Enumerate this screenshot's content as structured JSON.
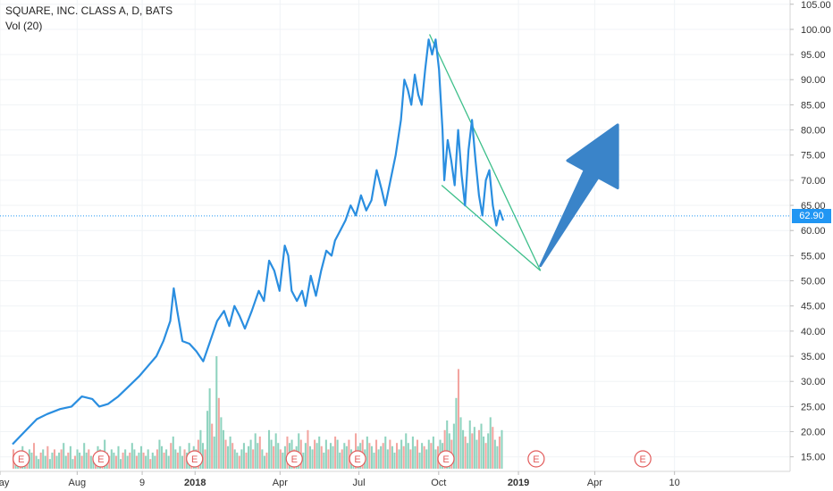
{
  "header": {
    "symbol": "SQUARE, INC. CLASS A, D, BATS",
    "indicator": "Vol (20)"
  },
  "last_price_label": "62.90",
  "colors": {
    "price_line": "#2a8ee0",
    "arrow": "#3a84c9",
    "wedge": "#3dbf8a",
    "vol_up": "#8fd3bf",
    "vol_down": "#f3a5a0",
    "earnings": "#e25b5b",
    "last_price": "#2196f3"
  },
  "chart_data": {
    "type": "line",
    "title": "SQUARE, INC. CLASS A, D, BATS",
    "y_axis_side": "right",
    "ylim": [
      13.5,
      106
    ],
    "y_ticks": [
      "15.00",
      "20.00",
      "25.00",
      "30.00",
      "35.00",
      "40.00",
      "45.00",
      "50.00",
      "55.00",
      "60.00",
      "65.00",
      "70.00",
      "75.00",
      "80.00",
      "85.00",
      "90.00",
      "95.00",
      "100.00",
      "105.00"
    ],
    "x_ticks": [
      {
        "label": "May",
        "t": 0
      },
      {
        "label": "Aug",
        "t": 89
      },
      {
        "label": "9",
        "t": 164
      },
      {
        "label": "2018",
        "t": 225
      },
      {
        "label": "Apr",
        "t": 323
      },
      {
        "label": "Jul",
        "t": 414
      },
      {
        "label": "Oct",
        "t": 506
      },
      {
        "label": "2019",
        "t": 598
      },
      {
        "label": "Apr",
        "t": 686
      },
      {
        "label": "10",
        "t": 778
      }
    ],
    "series": [
      {
        "points": [
          [
            0,
            17.5
          ],
          [
            14,
            20
          ],
          [
            28,
            22.5
          ],
          [
            40,
            23.5
          ],
          [
            55,
            24.5
          ],
          [
            68,
            25
          ],
          [
            80,
            27
          ],
          [
            92,
            26.5
          ],
          [
            100,
            25
          ],
          [
            110,
            25.5
          ],
          [
            122,
            27
          ],
          [
            134,
            29
          ],
          [
            146,
            31
          ],
          [
            156,
            33
          ],
          [
            166,
            35
          ],
          [
            174,
            38
          ],
          [
            182,
            42
          ],
          [
            186,
            48.5
          ],
          [
            190,
            44
          ],
          [
            196,
            38
          ],
          [
            204,
            37.5
          ],
          [
            212,
            36
          ],
          [
            220,
            34
          ],
          [
            228,
            38
          ],
          [
            236,
            42
          ],
          [
            244,
            44
          ],
          [
            250,
            41
          ],
          [
            256,
            45
          ],
          [
            262,
            43
          ],
          [
            268,
            40.5
          ],
          [
            276,
            44
          ],
          [
            284,
            48
          ],
          [
            290,
            46
          ],
          [
            296,
            54
          ],
          [
            302,
            52
          ],
          [
            308,
            48
          ],
          [
            314,
            57
          ],
          [
            318,
            55
          ],
          [
            322,
            48
          ],
          [
            328,
            46
          ],
          [
            334,
            48
          ],
          [
            338,
            45
          ],
          [
            344,
            51
          ],
          [
            350,
            47
          ],
          [
            356,
            52
          ],
          [
            362,
            56
          ],
          [
            368,
            55
          ],
          [
            372,
            58
          ],
          [
            378,
            60
          ],
          [
            384,
            62
          ],
          [
            390,
            65
          ],
          [
            396,
            63
          ],
          [
            402,
            67
          ],
          [
            408,
            64
          ],
          [
            414,
            66
          ],
          [
            420,
            72
          ],
          [
            426,
            68
          ],
          [
            430,
            65
          ],
          [
            436,
            70
          ],
          [
            442,
            75
          ],
          [
            448,
            82
          ],
          [
            452,
            90
          ],
          [
            456,
            88
          ],
          [
            460,
            85
          ],
          [
            464,
            91
          ],
          [
            468,
            87
          ],
          [
            472,
            85
          ],
          [
            476,
            92
          ],
          [
            480,
            98
          ],
          [
            484,
            95
          ],
          [
            488,
            98
          ],
          [
            492,
            92
          ],
          [
            496,
            80
          ],
          [
            498,
            70
          ],
          [
            502,
            78
          ],
          [
            506,
            74
          ],
          [
            510,
            69
          ],
          [
            514,
            80
          ],
          [
            518,
            71
          ],
          [
            522,
            65
          ],
          [
            526,
            76
          ],
          [
            530,
            82
          ],
          [
            534,
            74
          ],
          [
            538,
            67
          ],
          [
            542,
            63
          ],
          [
            546,
            70
          ],
          [
            550,
            72
          ],
          [
            554,
            65
          ],
          [
            558,
            61
          ],
          [
            562,
            64
          ],
          [
            566,
            62
          ]
        ],
        "last_value": 62.9
      }
    ],
    "annotations": {
      "wedge_upper": [
        [
          481,
          99
        ],
        [
          609,
          52
        ]
      ],
      "wedge_lower": [
        [
          495,
          69
        ],
        [
          609,
          52
        ]
      ],
      "arrow": {
        "from": [
          609,
          53
        ],
        "to": [
          698,
          81
        ]
      }
    },
    "volume": [
      6,
      4,
      5,
      3,
      7,
      5,
      4,
      6,
      5,
      8,
      4,
      3,
      5,
      6,
      4,
      7,
      3,
      5,
      6,
      4,
      5,
      6,
      8,
      4,
      5,
      7,
      3,
      4,
      6,
      5,
      4,
      8,
      5,
      6,
      4,
      3,
      5,
      7,
      6,
      4,
      9,
      5,
      4,
      6,
      5,
      4,
      7,
      3,
      5,
      6,
      4,
      5,
      8,
      6,
      4,
      5,
      7,
      5,
      4,
      6,
      3,
      5,
      4,
      6,
      9,
      7,
      5,
      6,
      4,
      8,
      10,
      6,
      5,
      7,
      4,
      6,
      5,
      8,
      4,
      7,
      6,
      9,
      12,
      8,
      6,
      18,
      25,
      14,
      10,
      35,
      22,
      16,
      12,
      9,
      7,
      10,
      8,
      6,
      5,
      4,
      6,
      8,
      5,
      7,
      9,
      6,
      11,
      8,
      10,
      6,
      4,
      5,
      12,
      9,
      7,
      11,
      8,
      6,
      5,
      7,
      10,
      8,
      9,
      6,
      7,
      11,
      9,
      5,
      8,
      12,
      7,
      6,
      9,
      8,
      10,
      7,
      5,
      9,
      6,
      8,
      7,
      10,
      9,
      5,
      6,
      8,
      7,
      9,
      6,
      5,
      11,
      7,
      8,
      9,
      6,
      10,
      8,
      7,
      5,
      9,
      6,
      7,
      8,
      10,
      6,
      9,
      7,
      5,
      8,
      6,
      9,
      7,
      11,
      8,
      6,
      10,
      7,
      9,
      5,
      8,
      7,
      6,
      9,
      8,
      10,
      6,
      7,
      9,
      8,
      12,
      15,
      11,
      9,
      14,
      22,
      31,
      16,
      12,
      10,
      8,
      15,
      11,
      13,
      9,
      12,
      14,
      10,
      8,
      11,
      16,
      13,
      9,
      7,
      10,
      12
    ],
    "earnings_markers": [
      10,
      102,
      210,
      325,
      398,
      500,
      604,
      727
    ],
    "earnings_label": "E"
  }
}
